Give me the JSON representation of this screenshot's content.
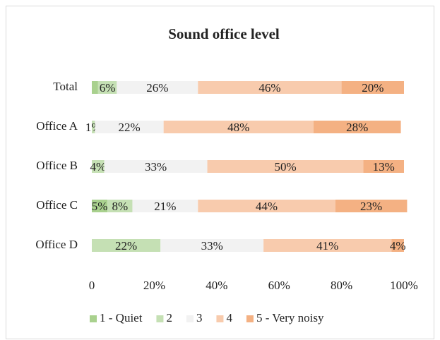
{
  "chart_data": {
    "type": "stacked-bar-horizontal",
    "title": "Sound office level",
    "categories": [
      "Total",
      "Office A",
      "Office B",
      "Office C",
      "Office D"
    ],
    "series": [
      {
        "name": "1 - Quiet",
        "color": "#a9d18e",
        "values": [
          2,
          0,
          0,
          5,
          0
        ],
        "value_labels": [
          null,
          null,
          null,
          "5%",
          null
        ]
      },
      {
        "name": "2",
        "color": "#c5e0b4",
        "values": [
          6,
          1,
          4,
          8,
          22
        ],
        "value_labels": [
          "6%",
          "1%",
          "4%",
          "8%",
          "22%"
        ]
      },
      {
        "name": "3",
        "color": "#f2f2f2",
        "values": [
          26,
          22,
          33,
          21,
          33
        ],
        "value_labels": [
          "26%",
          "22%",
          "33%",
          "21%",
          "33%"
        ]
      },
      {
        "name": "4",
        "color": "#f8cbad",
        "values": [
          46,
          48,
          50,
          44,
          41
        ],
        "value_labels": [
          "46%",
          "48%",
          "50%",
          "44%",
          "41%"
        ]
      },
      {
        "name": "5 - Very noisy",
        "color": "#f4b183",
        "values": [
          20,
          28,
          13,
          23,
          4
        ],
        "value_labels": [
          "20%",
          "28%",
          "13%",
          "23%",
          "4%"
        ]
      }
    ],
    "xlim": [
      0,
      100
    ],
    "xticks": [
      0,
      {
        "value": 20,
        "label": "20%"
      },
      {
        "value": 40,
        "label": "40%"
      },
      {
        "value": 60,
        "label": "60%"
      },
      {
        "value": 80,
        "label": "80%"
      },
      {
        "value": 100,
        "label": "100%"
      }
    ],
    "grid": false,
    "legend": "bottom"
  }
}
